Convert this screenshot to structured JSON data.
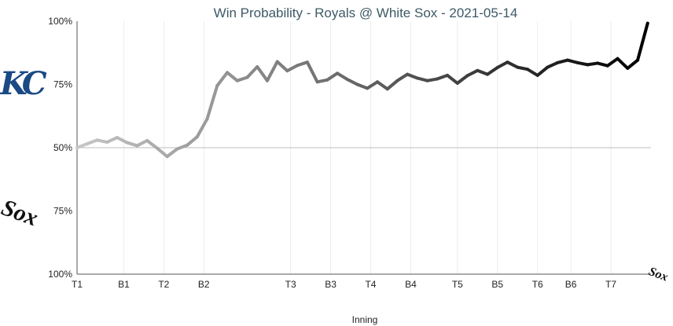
{
  "chart_data": {
    "type": "line",
    "title": "Win Probability - Royals @ White Sox - 2021-05-14",
    "xlabel": "Inning",
    "ylabel": "",
    "y_ticks": [
      "100%",
      "75%",
      "50%",
      "75%",
      "100%"
    ],
    "y_tick_values": [
      0,
      25,
      50,
      75,
      100
    ],
    "ylim": [
      0,
      100
    ],
    "x_tick_labels": [
      "T1",
      "B1",
      "T2",
      "B2",
      "T3",
      "B3",
      "T4",
      "B4",
      "T5",
      "B5",
      "T6",
      "B6",
      "T7"
    ],
    "x_tick_positions": [
      0,
      7,
      13,
      19,
      32,
      38,
      44,
      50,
      57,
      63,
      69,
      74,
      80
    ],
    "xlim": [
      0,
      86
    ],
    "grid": true,
    "reference_line": 50,
    "series": [
      {
        "values": [
          [
            0,
            50
          ],
          [
            1.5,
            48.5
          ],
          [
            3,
            47
          ],
          [
            4.5,
            47.8
          ],
          [
            6,
            46
          ],
          [
            7.5,
            48
          ],
          [
            9,
            49.2
          ],
          [
            10.5,
            47.2
          ],
          [
            12,
            50.2
          ],
          [
            13.5,
            53.5
          ],
          [
            15,
            50.5
          ],
          [
            16.5,
            49
          ],
          [
            18,
            45.7
          ],
          [
            19.5,
            38.6
          ],
          [
            21,
            25.5
          ],
          [
            22.5,
            20.3
          ],
          [
            24,
            23.5
          ],
          [
            25.5,
            22.2
          ],
          [
            27,
            18
          ],
          [
            28.5,
            23.5
          ],
          [
            30,
            16
          ],
          [
            31.5,
            19.6
          ],
          [
            33,
            17.5
          ],
          [
            34.5,
            16.2
          ],
          [
            36,
            24
          ],
          [
            37.5,
            23.2
          ],
          [
            39,
            20.6
          ],
          [
            40.5,
            23
          ],
          [
            42,
            25
          ],
          [
            43.5,
            26.5
          ],
          [
            45,
            24
          ],
          [
            46.5,
            26.8
          ],
          [
            48,
            23.5
          ],
          [
            49.5,
            21
          ],
          [
            51,
            22.5
          ],
          [
            52.5,
            23.5
          ],
          [
            54,
            22.8
          ],
          [
            55.5,
            21.4
          ],
          [
            57,
            24.5
          ],
          [
            58.5,
            21.5
          ],
          [
            60,
            19.5
          ],
          [
            61.5,
            21
          ],
          [
            63,
            18.3
          ],
          [
            64.5,
            16.2
          ],
          [
            66,
            18.2
          ],
          [
            67.5,
            19
          ],
          [
            69,
            21.4
          ],
          [
            70.5,
            18.2
          ],
          [
            72,
            16.4
          ],
          [
            73.5,
            15.4
          ],
          [
            75,
            16.4
          ],
          [
            76.5,
            17.2
          ],
          [
            78,
            16.6
          ],
          [
            79.5,
            17.6
          ],
          [
            81,
            14.8
          ],
          [
            82.5,
            18.6
          ],
          [
            84,
            15.4
          ],
          [
            85.5,
            0.8
          ]
        ]
      }
    ],
    "colors": {
      "early": "#c6c6c6",
      "late": "#000000",
      "title": "#3d5a66",
      "royals": "#1a4a85",
      "whitesox": "#111111"
    },
    "icons": {
      "top": "royals-logo-icon",
      "bottom": "white-sox-logo-icon",
      "end": "white-sox-logo-icon"
    },
    "logos": {
      "royals": "KC",
      "whitesox": "Sox"
    }
  }
}
